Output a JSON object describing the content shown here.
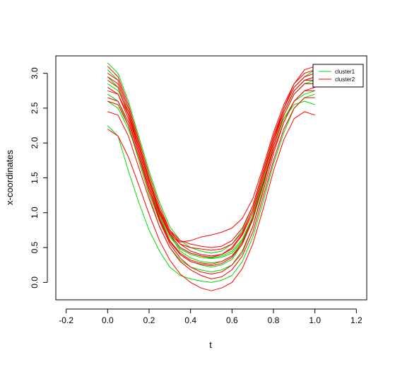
{
  "chart_data": {
    "type": "line",
    "title": "",
    "xlabel": "t",
    "ylabel": "x-coordinates",
    "xlim": [
      -0.25,
      1.25
    ],
    "ylim": [
      -0.25,
      3.25
    ],
    "x_ticks": [
      -0.2,
      0.0,
      0.2,
      0.4,
      0.6,
      0.8,
      1.0,
      1.2
    ],
    "x_tick_labels": [
      "-0.2",
      "0.0",
      "0.2",
      "0.4",
      "0.6",
      "0.8",
      "1.0",
      "1.2"
    ],
    "y_ticks": [
      0.0,
      0.5,
      1.0,
      1.5,
      2.0,
      2.5,
      3.0
    ],
    "y_tick_labels": [
      "0.0",
      "0.5",
      "1.0",
      "1.5",
      "2.0",
      "2.5",
      "3.0"
    ],
    "grid": false,
    "legend_position": "top-right",
    "t": [
      0.0,
      0.05,
      0.1,
      0.15,
      0.2,
      0.25,
      0.3,
      0.35,
      0.4,
      0.45,
      0.5,
      0.55,
      0.6,
      0.65,
      0.7,
      0.75,
      0.8,
      0.85,
      0.9,
      0.95,
      1.0
    ],
    "series": [
      {
        "name": "cluster1",
        "color": "#00dd00",
        "curves": [
          [
            3.15,
            3.0,
            2.6,
            2.1,
            1.6,
            1.15,
            0.8,
            0.6,
            0.5,
            0.45,
            0.42,
            0.45,
            0.55,
            0.75,
            1.1,
            1.6,
            2.1,
            2.5,
            2.8,
            2.95,
            3.05
          ],
          [
            2.95,
            2.8,
            2.4,
            1.9,
            1.4,
            0.95,
            0.6,
            0.4,
            0.3,
            0.25,
            0.22,
            0.25,
            0.33,
            0.55,
            0.95,
            1.5,
            2.05,
            2.45,
            2.75,
            2.9,
            2.95
          ],
          [
            2.7,
            2.6,
            2.25,
            1.75,
            1.25,
            0.8,
            0.5,
            0.32,
            0.22,
            0.18,
            0.15,
            0.18,
            0.25,
            0.42,
            0.8,
            1.35,
            1.95,
            2.4,
            2.7,
            2.85,
            2.9
          ],
          [
            2.25,
            2.1,
            1.6,
            1.15,
            0.75,
            0.45,
            0.22,
            0.1,
            0.05,
            0.02,
            0.0,
            0.03,
            0.1,
            0.3,
            0.65,
            1.15,
            1.7,
            2.15,
            2.5,
            2.65,
            2.7
          ],
          [
            2.85,
            2.75,
            2.45,
            2.0,
            1.5,
            1.05,
            0.7,
            0.5,
            0.42,
            0.38,
            0.35,
            0.38,
            0.45,
            0.62,
            0.95,
            1.45,
            1.95,
            2.35,
            2.6,
            2.7,
            2.75
          ],
          [
            3.05,
            2.9,
            2.5,
            2.0,
            1.5,
            1.05,
            0.68,
            0.45,
            0.35,
            0.3,
            0.28,
            0.3,
            0.38,
            0.55,
            0.9,
            1.4,
            1.95,
            2.4,
            2.7,
            2.85,
            2.85
          ],
          [
            2.6,
            2.5,
            2.2,
            1.8,
            1.35,
            0.95,
            0.65,
            0.48,
            0.4,
            0.36,
            0.34,
            0.36,
            0.42,
            0.6,
            0.95,
            1.45,
            1.95,
            2.35,
            2.55,
            2.6,
            2.55
          ]
        ]
      },
      {
        "name": "cluster2",
        "color": "#ff0000",
        "curves": [
          [
            3.1,
            2.95,
            2.55,
            2.05,
            1.55,
            1.1,
            0.75,
            0.55,
            0.45,
            0.4,
            0.38,
            0.4,
            0.5,
            0.7,
            1.05,
            1.55,
            2.05,
            2.5,
            2.85,
            3.05,
            3.1
          ],
          [
            2.9,
            2.8,
            2.4,
            1.9,
            1.4,
            0.98,
            0.68,
            0.5,
            0.42,
            0.38,
            0.36,
            0.4,
            0.48,
            0.68,
            1.0,
            1.5,
            2.0,
            2.45,
            2.75,
            2.9,
            2.95
          ],
          [
            2.8,
            2.7,
            2.35,
            1.85,
            1.35,
            0.92,
            0.6,
            0.42,
            0.32,
            0.28,
            0.26,
            0.3,
            0.38,
            0.58,
            0.92,
            1.42,
            1.95,
            2.4,
            2.7,
            2.85,
            2.85
          ],
          [
            2.6,
            2.55,
            2.25,
            1.8,
            1.3,
            0.88,
            0.55,
            0.35,
            0.22,
            0.15,
            0.12,
            0.15,
            0.25,
            0.45,
            0.8,
            1.3,
            1.85,
            2.3,
            2.6,
            2.75,
            2.8
          ],
          [
            3.0,
            2.9,
            2.5,
            2.0,
            1.48,
            1.05,
            0.75,
            0.6,
            0.55,
            0.52,
            0.5,
            0.52,
            0.6,
            0.78,
            1.1,
            1.6,
            2.1,
            2.5,
            2.8,
            2.95,
            3.0
          ],
          [
            2.2,
            2.1,
            1.8,
            1.4,
            0.98,
            0.6,
            0.32,
            0.12,
            0.0,
            -0.08,
            -0.12,
            -0.08,
            0.0,
            0.2,
            0.55,
            1.05,
            1.6,
            2.05,
            2.35,
            2.45,
            2.4
          ],
          [
            2.75,
            2.7,
            2.4,
            1.95,
            1.45,
            1.0,
            0.7,
            0.55,
            0.5,
            0.48,
            0.46,
            0.48,
            0.55,
            0.72,
            1.05,
            1.55,
            2.05,
            2.45,
            2.75,
            2.9,
            2.9
          ],
          [
            2.95,
            2.85,
            2.45,
            1.95,
            1.45,
            1.02,
            0.72,
            0.58,
            0.6,
            0.65,
            0.68,
            0.72,
            0.78,
            0.92,
            1.2,
            1.65,
            2.15,
            2.55,
            2.85,
            3.0,
            3.05
          ],
          [
            2.65,
            2.6,
            2.3,
            1.85,
            1.35,
            0.9,
            0.58,
            0.4,
            0.3,
            0.26,
            0.24,
            0.27,
            0.36,
            0.55,
            0.9,
            1.4,
            1.9,
            2.3,
            2.6,
            2.75,
            2.75
          ],
          [
            2.45,
            2.4,
            2.1,
            1.65,
            1.2,
            0.8,
            0.5,
            0.3,
            0.18,
            0.1,
            0.05,
            0.08,
            0.18,
            0.38,
            0.72,
            1.22,
            1.75,
            2.2,
            2.5,
            2.65,
            2.65
          ]
        ]
      }
    ]
  }
}
